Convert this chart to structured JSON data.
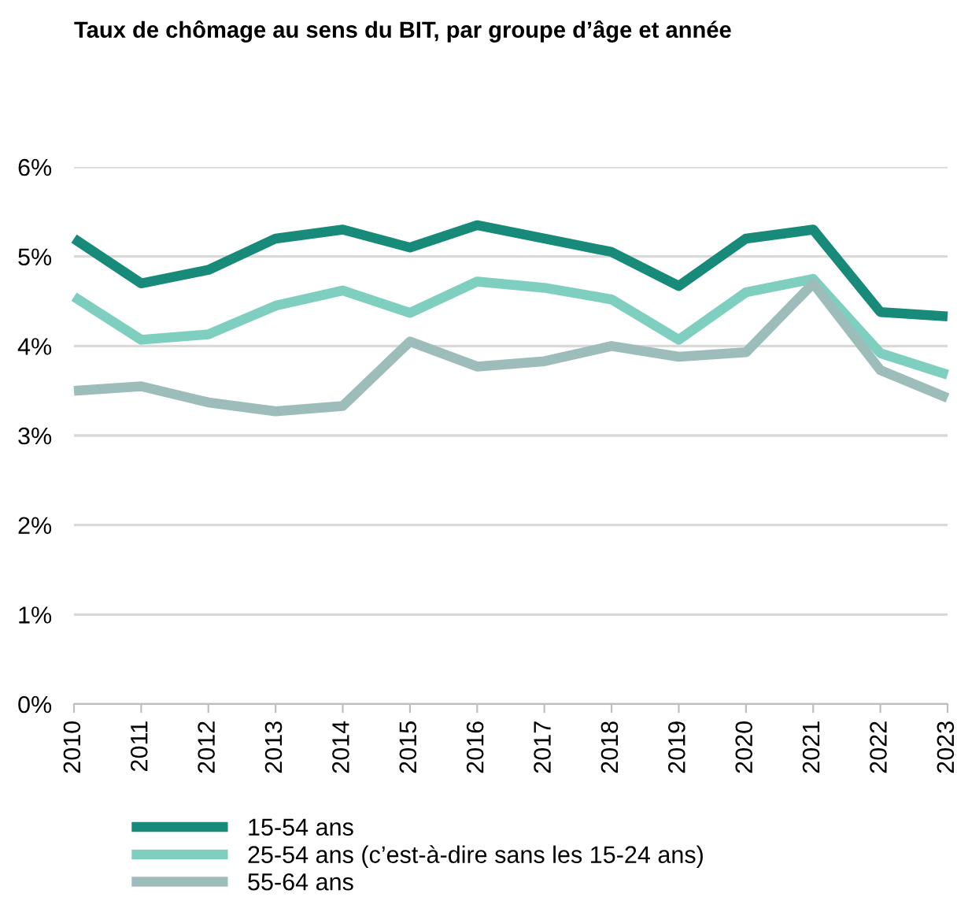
{
  "chart_data": {
    "type": "line",
    "title": "Taux de chômage au sens du BIT, par groupe d’âge et année",
    "categories": [
      "2010",
      "2011",
      "2012",
      "2013",
      "2014",
      "2015",
      "2016",
      "2017",
      "2018",
      "2019",
      "2020",
      "2021",
      "2022",
      "2023"
    ],
    "series": [
      {
        "name": "15-54 ans",
        "color": "#178a79",
        "values": [
          5.2,
          4.7,
          4.85,
          5.2,
          5.3,
          5.1,
          5.35,
          5.2,
          5.05,
          4.67,
          5.2,
          5.3,
          4.38,
          4.33
        ]
      },
      {
        "name": "25-54 ans (c’est-à-dire sans les 15-24 ans)",
        "color": "#7fcfc0",
        "values": [
          4.55,
          4.07,
          4.13,
          4.45,
          4.62,
          4.37,
          4.72,
          4.65,
          4.52,
          4.07,
          4.6,
          4.75,
          3.92,
          3.68
        ]
      },
      {
        "name": "55-64 ans",
        "color": "#9dbdbb",
        "values": [
          3.5,
          3.55,
          3.37,
          3.27,
          3.33,
          4.05,
          3.77,
          3.83,
          4.0,
          3.88,
          3.93,
          4.7,
          3.73,
          3.42
        ]
      }
    ],
    "ylim": [
      0,
      6
    ],
    "yticks": [
      {
        "value": 0,
        "label": "0%"
      },
      {
        "value": 1,
        "label": "1%"
      },
      {
        "value": 2,
        "label": "2%"
      },
      {
        "value": 3,
        "label": "3%"
      },
      {
        "value": 4,
        "label": "4%"
      },
      {
        "value": 5,
        "label": "5%"
      },
      {
        "value": 6,
        "label": "6%"
      }
    ],
    "grid": "y",
    "legend": "bottom",
    "marker": "none",
    "line_style": "solid"
  }
}
